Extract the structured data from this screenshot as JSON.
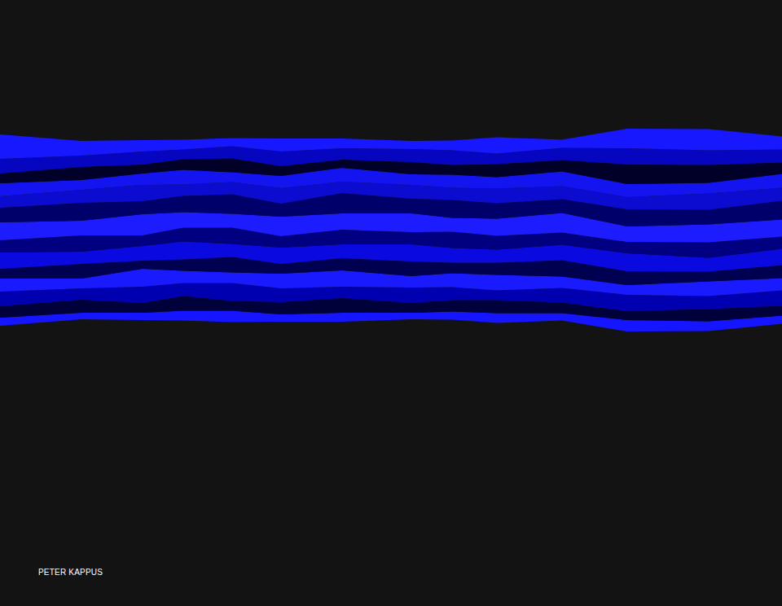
{
  "chart_data": {
    "type": "area",
    "title": "PETER KAPPUS",
    "stacked": true,
    "tick_labels": false,
    "grid": false,
    "x": [
      0,
      100,
      175,
      225,
      285,
      345,
      420,
      505,
      555,
      610,
      690,
      770,
      870,
      960
    ],
    "xlim": [
      0,
      960
    ],
    "ylim": [
      -337,
      407
    ],
    "series": [
      {
        "color": "#1515ff",
        "values": [
          10,
          8,
          9,
          12,
          14,
          9,
          11,
          8,
          10,
          12,
          9,
          14,
          12,
          10
        ]
      },
      {
        "color": "#00003a",
        "values": [
          14,
          16,
          12,
          18,
          12,
          15,
          18,
          12,
          14,
          16,
          13,
          11,
          15,
          12
        ]
      },
      {
        "color": "#0000b0",
        "values": [
          18,
          14,
          20,
          16,
          22,
          17,
          14,
          19,
          16,
          12,
          18,
          20,
          16,
          19
        ]
      },
      {
        "color": "#1a1aff",
        "values": [
          16,
          12,
          22,
          15,
          13,
          18,
          20,
          14,
          17,
          19,
          14,
          12,
          18,
          15
        ]
      },
      {
        "color": "#000050",
        "values": [
          12,
          18,
          10,
          14,
          19,
          12,
          15,
          18,
          13,
          15,
          20,
          17,
          12,
          16
        ]
      },
      {
        "color": "#0a0ae0",
        "values": [
          20,
          15,
          18,
          22,
          16,
          20,
          17,
          21,
          18,
          16,
          19,
          22,
          17,
          20
        ]
      },
      {
        "color": "#000080",
        "values": [
          15,
          20,
          13,
          17,
          20,
          14,
          18,
          15,
          20,
          17,
          15,
          14,
          19,
          15
        ]
      },
      {
        "color": "#1c1cff",
        "values": [
          22,
          18,
          26,
          19,
          17,
          24,
          20,
          23,
          17,
          21,
          24,
          19,
          22,
          21
        ]
      },
      {
        "color": "#00006a",
        "values": [
          18,
          22,
          16,
          20,
          24,
          16,
          25,
          18,
          22,
          19,
          17,
          21,
          18,
          23
        ]
      },
      {
        "color": "#0c0cd0",
        "values": [
          14,
          16,
          20,
          14,
          15,
          19,
          14,
          17,
          15,
          18,
          16,
          15,
          20,
          16
        ]
      },
      {
        "color": "#1414f0",
        "values": [
          16,
          12,
          14,
          18,
          12,
          15,
          17,
          13,
          16,
          14,
          18,
          16,
          13,
          17
        ]
      },
      {
        "color": "#000028",
        "values": [
          12,
          16,
          11,
          13,
          17,
          12,
          10,
          15,
          12,
          16,
          14,
          24,
          22,
          14
        ]
      },
      {
        "color": "#0606c0",
        "values": [
          18,
          14,
          16,
          12,
          15,
          18,
          14,
          16,
          18,
          13,
          15,
          20,
          18,
          16
        ]
      },
      {
        "color": "#1818ff",
        "values": [
          30,
          18,
          14,
          12,
          10,
          16,
          12,
          10,
          12,
          20,
          10,
          24,
          26,
          16
        ]
      }
    ]
  }
}
